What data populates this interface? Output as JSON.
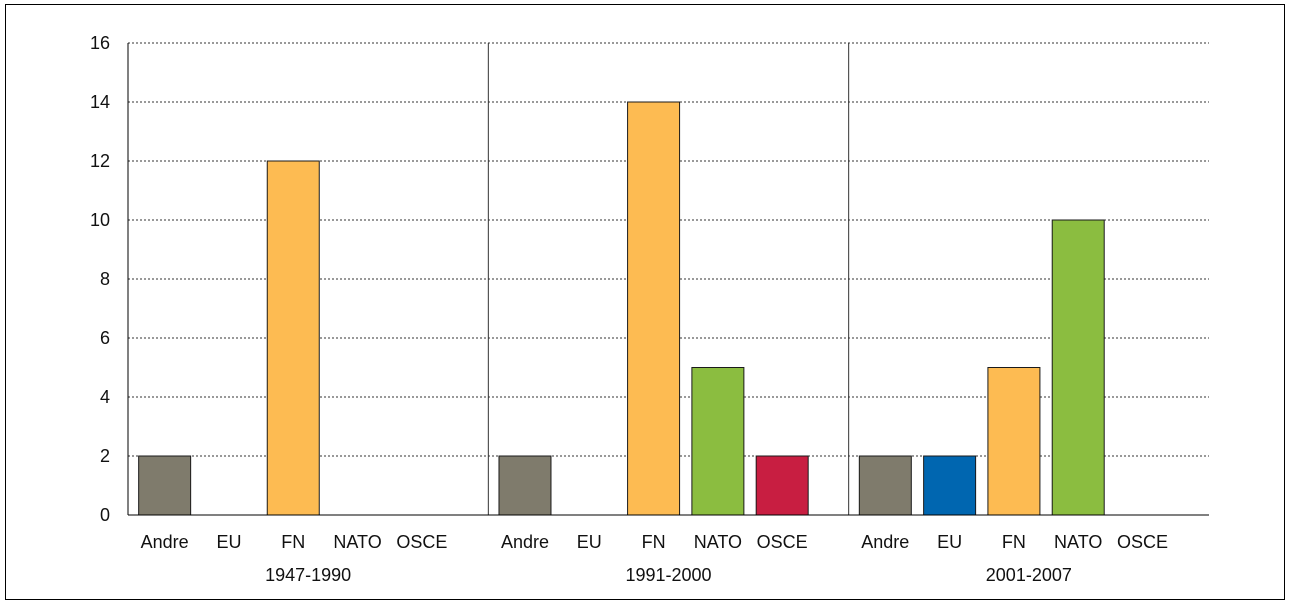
{
  "chart_data": {
    "type": "bar",
    "title": "",
    "xlabel": "",
    "ylabel": "",
    "ylim": [
      0,
      16
    ],
    "yticks": [
      0,
      2,
      4,
      6,
      8,
      10,
      12,
      14,
      16
    ],
    "grid": true,
    "categories": [
      "Andre",
      "EU",
      "FN",
      "NATO",
      "OSCE"
    ],
    "colors": {
      "Andre": "#7f7b6c",
      "EU": "#0066b0",
      "FN": "#fdbb52",
      "NATO": "#8bbd40",
      "OSCE": "#c81e41"
    },
    "groups": [
      {
        "name": "1947-1990",
        "values": [
          2,
          0,
          12,
          0,
          0
        ]
      },
      {
        "name": "1991-2000",
        "values": [
          2,
          0,
          14,
          5,
          2
        ]
      },
      {
        "name": "2001-2007",
        "values": [
          2,
          2,
          5,
          10,
          0
        ]
      }
    ]
  }
}
